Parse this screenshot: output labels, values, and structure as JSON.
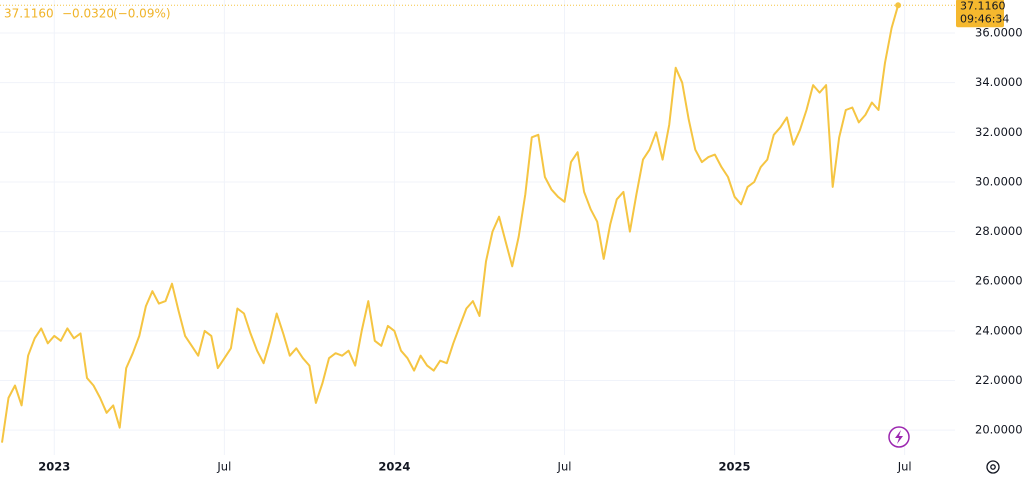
{
  "chart_data": {
    "type": "line",
    "header": {
      "price": "37.1160",
      "change": "−0.0320",
      "change_pct": "(−0.09%)"
    },
    "last_label": "37.1160",
    "time_label": "09:46:34",
    "color": "#f5c542",
    "grid": true,
    "ylim": [
      19,
      37.33
    ],
    "yticks": [
      {
        "value": 20,
        "label": "20.0000"
      },
      {
        "value": 22,
        "label": "22.0000"
      },
      {
        "value": 24,
        "label": "24.0000"
      },
      {
        "value": 26,
        "label": "26.0000"
      },
      {
        "value": 28,
        "label": "28.0000"
      },
      {
        "value": 30,
        "label": "30.0000"
      },
      {
        "value": 32,
        "label": "32.0000"
      },
      {
        "value": 34,
        "label": "34.0000"
      },
      {
        "value": 36,
        "label": "36.0000"
      }
    ],
    "categories": [
      null,
      null,
      null,
      null,
      null,
      null,
      null,
      null,
      "2023",
      null,
      null,
      null,
      null,
      null,
      null,
      null,
      null,
      null,
      null,
      null,
      null,
      null,
      null,
      null,
      null,
      null,
      null,
      null,
      null,
      null,
      null,
      null,
      null,
      null,
      "Jul",
      null,
      null,
      null,
      null,
      null,
      null,
      null,
      null,
      null,
      null,
      null,
      null,
      null,
      null,
      null,
      null,
      null,
      null,
      null,
      null,
      null,
      null,
      null,
      null,
      null,
      "2024",
      null,
      null,
      null,
      null,
      null,
      null,
      null,
      null,
      null,
      null,
      null,
      null,
      null,
      null,
      null,
      null,
      null,
      null,
      null,
      null,
      null,
      null,
      null,
      null,
      null,
      "Jul",
      null,
      null,
      null,
      null,
      null,
      null,
      null,
      null,
      null,
      null,
      null,
      null,
      null,
      null,
      null,
      null,
      null,
      null,
      null,
      null,
      null,
      null,
      null,
      null,
      null,
      "2025",
      null,
      null,
      null,
      null,
      null,
      null,
      null,
      null,
      null,
      null,
      null,
      null,
      null,
      null,
      null,
      null,
      null,
      null,
      null,
      null,
      null,
      null,
      null,
      null,
      null,
      "Jul",
      null,
      null,
      null,
      null,
      null,
      null,
      null
    ],
    "values": [
      19.5,
      21.3,
      21.8,
      21.0,
      23.0,
      23.7,
      24.1,
      23.5,
      23.8,
      23.6,
      24.1,
      23.7,
      23.9,
      22.1,
      21.8,
      21.3,
      20.7,
      21.0,
      20.1,
      22.5,
      23.1,
      23.8,
      25.0,
      25.6,
      25.1,
      25.2,
      25.9,
      24.8,
      23.8,
      23.4,
      23.0,
      24.0,
      23.8,
      22.5,
      22.9,
      23.3,
      24.9,
      24.7,
      23.9,
      23.2,
      22.7,
      23.6,
      24.7,
      23.9,
      23.0,
      23.3,
      22.9,
      22.6,
      21.1,
      21.9,
      22.9,
      23.1,
      23.0,
      23.2,
      22.6,
      24.0,
      25.2,
      23.6,
      23.4,
      24.2,
      24.0,
      23.2,
      22.9,
      22.4,
      23.0,
      22.6,
      22.4,
      22.8,
      22.7,
      23.5,
      24.2,
      24.9,
      25.2,
      24.6,
      26.8,
      28.0,
      28.6,
      27.6,
      26.6,
      27.8,
      29.5,
      31.8,
      31.9,
      30.2,
      29.7,
      29.4,
      29.2,
      30.8,
      31.2,
      29.6,
      28.9,
      28.4,
      26.9,
      28.3,
      29.3,
      29.6,
      28.0,
      29.5,
      30.9,
      31.3,
      32.0,
      30.9,
      32.3,
      34.6,
      34.0,
      32.5,
      31.3,
      30.8,
      31.0,
      31.1,
      30.6,
      30.2,
      29.4,
      29.1,
      29.8,
      30.0,
      30.6,
      30.9,
      31.9,
      32.2,
      32.6,
      31.5,
      32.1,
      32.9,
      33.9,
      33.6,
      33.9,
      29.8,
      31.8,
      32.9,
      33.0,
      32.4,
      32.7,
      33.2,
      32.9,
      34.8,
      36.2,
      37.116,
      null,
      null,
      null,
      null,
      null,
      null,
      null,
      null
    ]
  }
}
